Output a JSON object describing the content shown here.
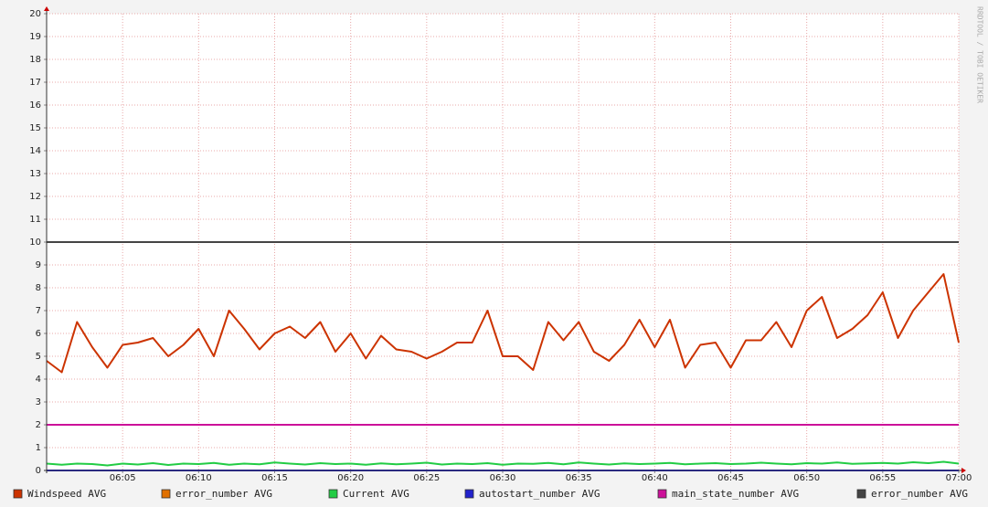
{
  "chart_data": {
    "type": "line",
    "watermark": "RRDTOOL / TOBI OETIKER",
    "x": [
      "06:00",
      "06:01",
      "06:02",
      "06:03",
      "06:04",
      "06:05",
      "06:06",
      "06:07",
      "06:08",
      "06:09",
      "06:10",
      "06:11",
      "06:12",
      "06:13",
      "06:14",
      "06:15",
      "06:16",
      "06:17",
      "06:18",
      "06:19",
      "06:20",
      "06:21",
      "06:22",
      "06:23",
      "06:24",
      "06:25",
      "06:26",
      "06:27",
      "06:28",
      "06:29",
      "06:30",
      "06:31",
      "06:32",
      "06:33",
      "06:34",
      "06:35",
      "06:36",
      "06:37",
      "06:38",
      "06:39",
      "06:40",
      "06:41",
      "06:42",
      "06:43",
      "06:44",
      "06:45",
      "06:46",
      "06:47",
      "06:48",
      "06:49",
      "06:50",
      "06:51",
      "06:52",
      "06:53",
      "06:54",
      "06:55",
      "06:56",
      "06:57",
      "06:58",
      "06:59",
      "07:00"
    ],
    "xlim": [
      "06:00",
      "07:00"
    ],
    "xticks": [
      "06:05",
      "06:10",
      "06:15",
      "06:20",
      "06:25",
      "06:30",
      "06:35",
      "06:40",
      "06:45",
      "06:50",
      "06:55",
      "07:00"
    ],
    "ylim": [
      0,
      20
    ],
    "yticks": [
      0,
      1,
      2,
      3,
      4,
      5,
      6,
      7,
      8,
      9,
      10,
      11,
      12,
      13,
      14,
      15,
      16,
      17,
      18,
      19,
      20
    ],
    "grid": true,
    "series": [
      {
        "name": "Windspeed AVG",
        "color": "#cc3300",
        "values": [
          4.8,
          4.3,
          6.5,
          5.4,
          4.5,
          5.5,
          5.6,
          5.8,
          5.0,
          5.5,
          6.2,
          5.0,
          7.0,
          6.2,
          5.3,
          6.0,
          6.3,
          5.8,
          6.5,
          5.2,
          6.0,
          4.9,
          5.9,
          5.3,
          5.2,
          4.9,
          5.2,
          5.6,
          5.6,
          7.0,
          5.0,
          5.0,
          4.4,
          6.5,
          5.7,
          6.5,
          5.2,
          4.8,
          5.5,
          6.6,
          5.4,
          6.6,
          4.5,
          5.5,
          5.6,
          4.5,
          5.7,
          5.7,
          6.5,
          5.4,
          7.0,
          7.6,
          5.8,
          6.2,
          6.8,
          7.8,
          5.8,
          7.0,
          7.8,
          8.6,
          5.6
        ]
      },
      {
        "name": "error_number AVG",
        "color": "#e07000",
        "values": [
          0,
          0,
          0,
          0,
          0,
          0,
          0,
          0,
          0,
          0,
          0,
          0,
          0,
          0,
          0,
          0,
          0,
          0,
          0,
          0,
          0,
          0,
          0,
          0,
          0,
          0,
          0,
          0,
          0,
          0,
          0,
          0,
          0,
          0,
          0,
          0,
          0,
          0,
          0,
          0,
          0,
          0,
          0,
          0,
          0,
          0,
          0,
          0,
          0,
          0,
          0,
          0,
          0,
          0,
          0,
          0,
          0,
          0,
          0,
          0,
          0
        ]
      },
      {
        "name": "Current AVG",
        "color": "#22cc44",
        "values": [
          0.3,
          0.25,
          0.3,
          0.28,
          0.22,
          0.3,
          0.26,
          0.32,
          0.24,
          0.3,
          0.28,
          0.33,
          0.25,
          0.3,
          0.27,
          0.35,
          0.3,
          0.26,
          0.32,
          0.28,
          0.3,
          0.25,
          0.31,
          0.27,
          0.3,
          0.34,
          0.26,
          0.3,
          0.28,
          0.32,
          0.25,
          0.3,
          0.29,
          0.33,
          0.27,
          0.35,
          0.3,
          0.26,
          0.31,
          0.28,
          0.3,
          0.33,
          0.27,
          0.3,
          0.32,
          0.28,
          0.3,
          0.34,
          0.3,
          0.27,
          0.32,
          0.3,
          0.35,
          0.29,
          0.31,
          0.33,
          0.3,
          0.36,
          0.32,
          0.38,
          0.3
        ]
      },
      {
        "name": "autostart_number AVG",
        "color": "#2222cc",
        "values": [
          0,
          0,
          0,
          0,
          0,
          0,
          0,
          0,
          0,
          0,
          0,
          0,
          0,
          0,
          0,
          0,
          0,
          0,
          0,
          0,
          0,
          0,
          0,
          0,
          0,
          0,
          0,
          0,
          0,
          0,
          0,
          0,
          0,
          0,
          0,
          0,
          0,
          0,
          0,
          0,
          0,
          0,
          0,
          0,
          0,
          0,
          0,
          0,
          0,
          0,
          0,
          0,
          0,
          0,
          0,
          0,
          0,
          0,
          0,
          0,
          0
        ]
      },
      {
        "name": "main_state_number AVG",
        "color": "#cc1199",
        "values": [
          2,
          2,
          2,
          2,
          2,
          2,
          2,
          2,
          2,
          2,
          2,
          2,
          2,
          2,
          2,
          2,
          2,
          2,
          2,
          2,
          2,
          2,
          2,
          2,
          2,
          2,
          2,
          2,
          2,
          2,
          2,
          2,
          2,
          2,
          2,
          2,
          2,
          2,
          2,
          2,
          2,
          2,
          2,
          2,
          2,
          2,
          2,
          2,
          2,
          2,
          2,
          2,
          2,
          2,
          2,
          2,
          2,
          2,
          2,
          2,
          2
        ]
      },
      {
        "name": "error_number AVG",
        "color": "#444444",
        "values": [
          10,
          10,
          10,
          10,
          10,
          10,
          10,
          10,
          10,
          10,
          10,
          10,
          10,
          10,
          10,
          10,
          10,
          10,
          10,
          10,
          10,
          10,
          10,
          10,
          10,
          10,
          10,
          10,
          10,
          10,
          10,
          10,
          10,
          10,
          10,
          10,
          10,
          10,
          10,
          10,
          10,
          10,
          10,
          10,
          10,
          10,
          10,
          10,
          10,
          10,
          10,
          10,
          10,
          10,
          10,
          10,
          10,
          10,
          10,
          10,
          10
        ]
      }
    ]
  }
}
